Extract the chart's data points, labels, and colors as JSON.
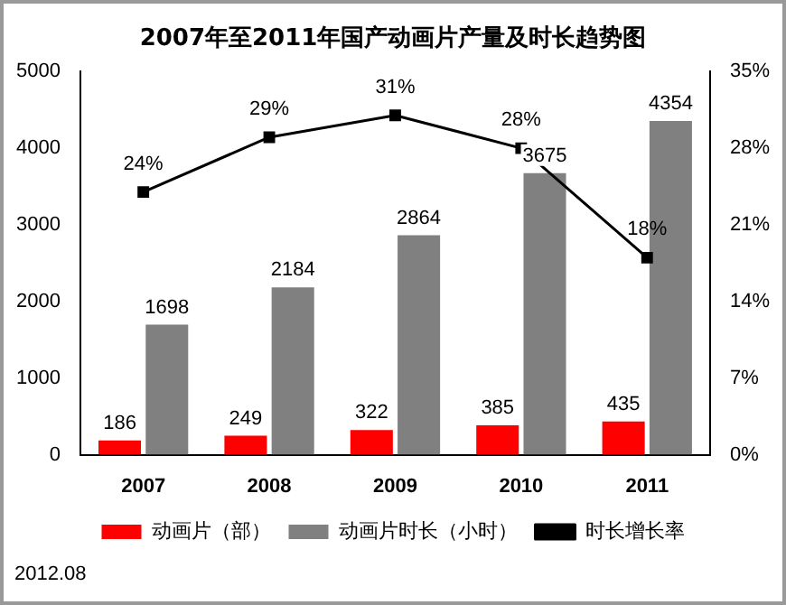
{
  "chart_data": {
    "type": "bar",
    "title": "2007年至2011年国产动画片产量及时长趋势图",
    "categories": [
      "2007",
      "2008",
      "2009",
      "2010",
      "2011"
    ],
    "series": [
      {
        "name": "动画片（部）",
        "color": "#ff0000",
        "values": [
          186,
          249,
          322,
          385,
          435
        ],
        "value_labels": [
          "186",
          "249",
          "322",
          "385",
          "435"
        ]
      },
      {
        "name": "动画片时长（小时）",
        "color": "#808080",
        "values": [
          1698,
          2184,
          2864,
          3675,
          4354
        ],
        "value_labels": [
          "1698",
          "2184",
          "2864",
          "3675",
          "4354"
        ]
      },
      {
        "name": "时长增长率",
        "type": "line",
        "axis": "y2",
        "color": "#000000",
        "values": [
          24,
          29,
          31,
          28,
          18
        ],
        "value_labels": [
          "24%",
          "29%",
          "31%",
          "28%",
          "18%"
        ]
      }
    ],
    "ylim": [
      0,
      5000
    ],
    "yticks": [
      0,
      1000,
      2000,
      3000,
      4000,
      5000
    ],
    "y2lim": [
      0,
      35
    ],
    "y2ticks": [
      {
        "value": 0,
        "label": "0%"
      },
      {
        "value": 7,
        "label": "7%"
      },
      {
        "value": 14,
        "label": "14%"
      },
      {
        "value": 21,
        "label": "21%"
      },
      {
        "value": 28,
        "label": "28%"
      },
      {
        "value": 35,
        "label": "35%"
      }
    ],
    "grid": false,
    "legend": "bottom",
    "marker": "square",
    "line_style": "solid",
    "annotations": [
      "2012.08"
    ]
  }
}
